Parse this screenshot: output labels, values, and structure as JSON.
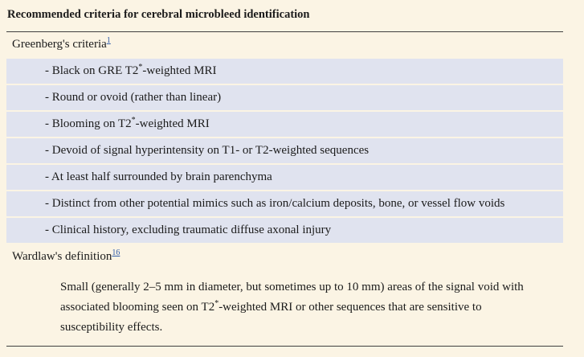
{
  "title": "Recommended criteria for cerebral microbleed identification",
  "table": {
    "greenberg": {
      "label": "Greenberg's criteria",
      "ref": "1"
    },
    "criteria": [
      {
        "pre": "- Black on GRE T2",
        "sup": "*",
        "post": "-weighted MRI"
      },
      {
        "pre": "- Round or ovoid (rather than linear)"
      },
      {
        "pre": "- Blooming on T2",
        "sup": "*",
        "post": "-weighted MRI"
      },
      {
        "pre": "- Devoid of signal hyperintensity on T1- or T2-weighted sequences"
      },
      {
        "pre": "- At least half surrounded by brain parenchyma"
      },
      {
        "pre": "- Distinct from other potential mimics such as iron/calcium deposits, bone, or vessel flow voids"
      },
      {
        "pre": "- Clinical history, excluding traumatic diffuse axonal injury"
      }
    ],
    "wardlaw": {
      "label": "Wardlaw's definition",
      "ref": "16"
    },
    "definition": {
      "pre": "Small (generally 2–5 mm in diameter, but sometimes up to 10 mm) areas of the signal void with associated blooming seen on T2",
      "sup": "*",
      "post": "-weighted MRI or other sequences that are sensitive to susceptibility effects."
    }
  },
  "colors": {
    "page_bg": "#fbf4e4",
    "row_alt_bg": "#e0e3ef",
    "text_color": "#1b1b1b",
    "link_color": "#2d5ba9",
    "border_dark": "#3f3f3f"
  }
}
